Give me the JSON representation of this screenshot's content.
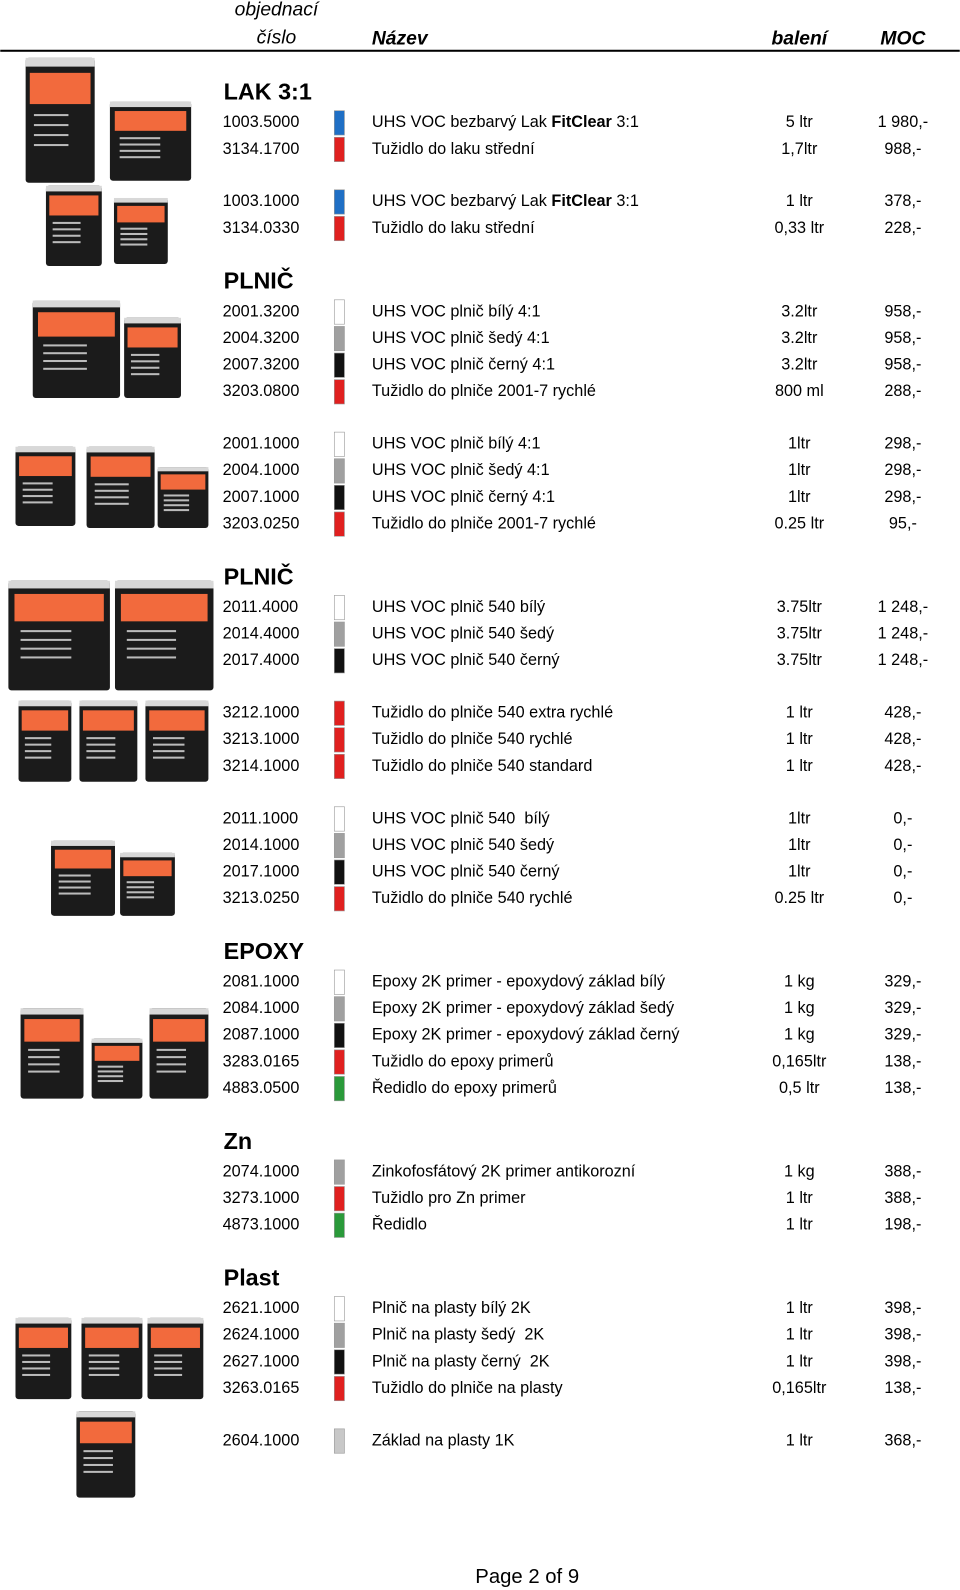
{
  "header": {
    "code_label": [
      "objednací",
      "číslo"
    ],
    "name_label": "Název",
    "pack_label": "balení",
    "price_label": "MOC"
  },
  "sections": [
    {
      "title": "LAK 3:1",
      "groups": [
        {
          "rows": [
            {
              "code": "1003.5000",
              "color": "#1f6fc5",
              "name": [
                {
                  "text": "UHS VOC bezbarvý Lak "
                },
                {
                  "text": "FitClear",
                  "bold": true
                },
                {
                  "text": " 3:1"
                }
              ],
              "pack": "5 ltr",
              "price": "1 980,-"
            },
            {
              "code": "3134.1700",
              "color": "#e0201f",
              "name": "Tužidlo do laku střední",
              "pack": "1,7ltr",
              "price": "988,-"
            }
          ]
        },
        {
          "rows": [
            {
              "code": "1003.1000",
              "color": "#1f6fc5",
              "name": [
                {
                  "text": "UHS VOC bezbarvý Lak "
                },
                {
                  "text": "FitClear",
                  "bold": true
                },
                {
                  "text": " 3:1"
                }
              ],
              "pack": "1 ltr",
              "price": "378,-"
            },
            {
              "code": "3134.0330",
              "color": "#e0201f",
              "name": "Tužidlo do laku střední",
              "pack": "0,33 ltr",
              "price": "228,-"
            }
          ]
        }
      ]
    },
    {
      "title": "PLNIČ",
      "groups": [
        {
          "rows": [
            {
              "code": "2001.3200",
              "color": "#ffffff",
              "name": "UHS VOC plnič bílý 4:1",
              "pack": "3.2ltr",
              "price": "958,-"
            },
            {
              "code": "2004.3200",
              "color": "#a0a0a0",
              "name": "UHS VOC plnič šedý 4:1",
              "pack": "3.2ltr",
              "price": "958,-"
            },
            {
              "code": "2007.3200",
              "color": "#111111",
              "name": "UHS VOC plnič černý 4:1",
              "pack": "3.2ltr",
              "price": "958,-"
            },
            {
              "code": "3203.0800",
              "color": "#e0201f",
              "name": "Tužidlo do plniče 2001-7 rychlé",
              "pack": "800 ml",
              "price": "288,-"
            }
          ]
        },
        {
          "rows": [
            {
              "code": "2001.1000",
              "color": "#ffffff",
              "name": "UHS VOC plnič bílý 4:1",
              "pack": "1ltr",
              "price": "298,-"
            },
            {
              "code": "2004.1000",
              "color": "#a0a0a0",
              "name": "UHS VOC plnič šedý 4:1",
              "pack": "1ltr",
              "price": "298,-"
            },
            {
              "code": "2007.1000",
              "color": "#111111",
              "name": "UHS VOC plnič černý 4:1",
              "pack": "1ltr",
              "price": "298,-"
            },
            {
              "code": "3203.0250",
              "color": "#e0201f",
              "name": "Tužidlo do plniče 2001-7 rychlé",
              "pack": "0.25 ltr",
              "price": "95,-"
            }
          ]
        }
      ]
    },
    {
      "title": "PLNIČ",
      "groups": [
        {
          "rows": [
            {
              "code": "2011.4000",
              "color": "#ffffff",
              "name": "UHS VOC plnič 540 bílý",
              "pack": "3.75ltr",
              "price": "1 248,-"
            },
            {
              "code": "2014.4000",
              "color": "#a0a0a0",
              "name": "UHS VOC plnič 540 šedý",
              "pack": "3.75ltr",
              "price": "1 248,-"
            },
            {
              "code": "2017.4000",
              "color": "#111111",
              "name": "UHS VOC plnič 540 černý",
              "pack": "3.75ltr",
              "price": "1 248,-"
            }
          ]
        },
        {
          "rows": [
            {
              "code": "3212.1000",
              "color": "#e0201f",
              "name": "Tužidlo do plniče 540 extra rychlé",
              "pack": "1 ltr",
              "price": "428,-"
            },
            {
              "code": "3213.1000",
              "color": "#e0201f",
              "name": "Tužidlo do plniče 540 rychlé",
              "pack": "1 ltr",
              "price": "428,-"
            },
            {
              "code": "3214.1000",
              "color": "#e0201f",
              "name": "Tužidlo do plniče 540 standard",
              "pack": "1 ltr",
              "price": "428,-"
            }
          ]
        },
        {
          "rows": [
            {
              "code": "2011.1000",
              "color": "#ffffff",
              "name": "UHS VOC plnič 540  bílý",
              "pack": "1ltr",
              "price": "0,-"
            },
            {
              "code": "2014.1000",
              "color": "#a0a0a0",
              "name": "UHS VOC plnič 540 šedý",
              "pack": "1ltr",
              "price": "0,-"
            },
            {
              "code": "2017.1000",
              "color": "#111111",
              "name": "UHS VOC plnič 540 černý",
              "pack": "1ltr",
              "price": "0,-"
            },
            {
              "code": "3213.0250",
              "color": "#e0201f",
              "name": "Tužidlo do plniče 540 rychlé",
              "pack": "0.25 ltr",
              "price": "0,-"
            }
          ]
        }
      ]
    },
    {
      "title": "EPOXY",
      "groups": [
        {
          "rows": [
            {
              "code": "2081.1000",
              "color": "#ffffff",
              "name": "Epoxy 2K primer - epoxydový základ bílý",
              "pack": "1 kg",
              "price": "329,-"
            },
            {
              "code": "2084.1000",
              "color": "#a0a0a0",
              "name": "Epoxy 2K primer - epoxydový základ šedý",
              "pack": "1 kg",
              "price": "329,-"
            },
            {
              "code": "2087.1000",
              "color": "#111111",
              "name": "Epoxy 2K primer - epoxydový základ černý",
              "pack": "1 kg",
              "price": "329,-"
            },
            {
              "code": "3283.0165",
              "color": "#e0201f",
              "name": "Tužidlo do epoxy primerů",
              "pack": "0,165ltr",
              "price": "138,-"
            },
            {
              "code": "4883.0500",
              "color": "#2a9a3a",
              "name": "Ředidlo do epoxy primerů",
              "pack": "0,5 ltr",
              "price": "138,-"
            }
          ]
        }
      ]
    },
    {
      "title": "Zn",
      "groups": [
        {
          "rows": [
            {
              "code": "2074.1000",
              "color": "#a0a0a0",
              "name": "Zinkofosfátový 2K primer antikorozní",
              "pack": "1 kg",
              "price": "388,-"
            },
            {
              "code": "3273.1000",
              "color": "#e0201f",
              "name": "Tužidlo pro Zn primer",
              "pack": "1 ltr",
              "price": "388,-"
            },
            {
              "code": "4873.1000",
              "color": "#2a9a3a",
              "name": "Ředidlo",
              "pack": "1 ltr",
              "price": "198,-"
            }
          ]
        }
      ]
    },
    {
      "title": "Plast",
      "groups": [
        {
          "rows": [
            {
              "code": "2621.1000",
              "color": "#ffffff",
              "name": "Plnič na plasty bílý 2K",
              "pack": "1 ltr",
              "price": "398,-"
            },
            {
              "code": "2624.1000",
              "color": "#a0a0a0",
              "name": "Plnič na plasty šedý  2K",
              "pack": "1 ltr",
              "price": "398,-"
            },
            {
              "code": "2627.1000",
              "color": "#111111",
              "name": "Plnič na plasty černý  2K",
              "pack": "1 ltr",
              "price": "398,-"
            },
            {
              "code": "3263.0165",
              "color": "#e0201f",
              "name": "Tužidlo do plniče na plasty",
              "pack": "0,165ltr",
              "price": "138,-"
            }
          ]
        },
        {
          "rows": [
            {
              "code": "2604.1000",
              "color": "#c8c8c8",
              "name": "Základ na plasty 1K",
              "pack": "1 ltr",
              "price": "368,-"
            }
          ]
        }
      ]
    }
  ],
  "footer": "Page 2 of 9"
}
